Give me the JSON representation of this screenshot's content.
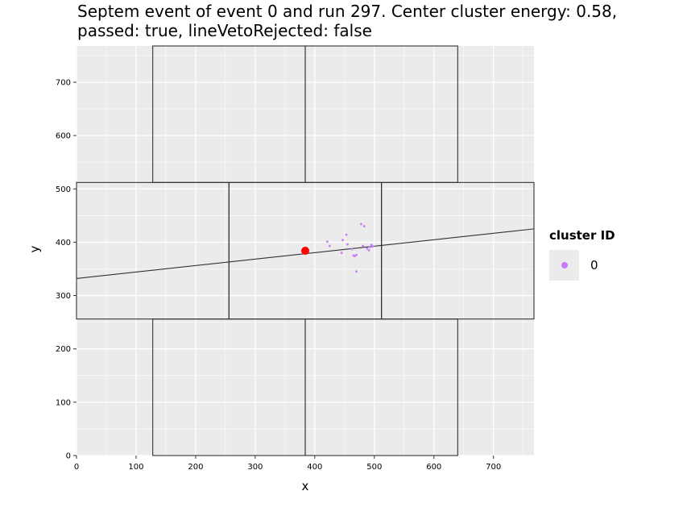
{
  "title": {
    "line1": "Septem event of event 0 and run 297. Center cluster energy: 0.58,",
    "line2": "passed: true, lineVetoRejected: false"
  },
  "legend": {
    "title": "cluster ID",
    "items": [
      {
        "label": "0",
        "color": "#c77cff"
      }
    ]
  },
  "colors": {
    "panel": "#ebebeb",
    "grid": "#ffffff",
    "outline": "#333333",
    "center": "#ff0000"
  },
  "chart_data": {
    "type": "scatter",
    "title": "Septem event of event 0 and run 297. Center cluster energy: 0.58, passed: true, lineVetoRejected: false",
    "xlabel": "x",
    "ylabel": "y",
    "xlim": [
      0,
      768
    ],
    "ylim": [
      0,
      768
    ],
    "xticks": [
      0,
      100,
      200,
      300,
      400,
      500,
      600,
      700
    ],
    "yticks": [
      0,
      100,
      200,
      300,
      400,
      500,
      600,
      700
    ],
    "grid": true,
    "legend_position": "right",
    "series": [
      {
        "name": "0",
        "color": "#c77cff",
        "points": [
          [
            421,
            401
          ],
          [
            425,
            393
          ],
          [
            445,
            380
          ],
          [
            447,
            404
          ],
          [
            453,
            414
          ],
          [
            455,
            396
          ],
          [
            462,
            387
          ],
          [
            465,
            375
          ],
          [
            467,
            374
          ],
          [
            470,
            376
          ],
          [
            470,
            345
          ],
          [
            478,
            434
          ],
          [
            483,
            430
          ],
          [
            481,
            393
          ],
          [
            488,
            388
          ],
          [
            491,
            385
          ],
          [
            493,
            391
          ],
          [
            495,
            395
          ],
          [
            498,
            392
          ]
        ]
      }
    ],
    "center_point": {
      "x": 384,
      "y": 384,
      "color": "#ff0000"
    },
    "veto_line": {
      "points": [
        [
          0,
          332
        ],
        [
          768,
          425
        ]
      ]
    },
    "chips": [
      {
        "x0": 128,
        "x1": 384,
        "y0": 512,
        "y1": 768
      },
      {
        "x0": 384,
        "x1": 640,
        "y0": 512,
        "y1": 768
      },
      {
        "x0": 0,
        "x1": 256,
        "y0": 256,
        "y1": 512
      },
      {
        "x0": 256,
        "x1": 512,
        "y0": 256,
        "y1": 512
      },
      {
        "x0": 512,
        "x1": 768,
        "y0": 256,
        "y1": 512
      },
      {
        "x0": 128,
        "x1": 384,
        "y0": 0,
        "y1": 256
      },
      {
        "x0": 384,
        "x1": 640,
        "y0": 0,
        "y1": 256
      }
    ]
  }
}
